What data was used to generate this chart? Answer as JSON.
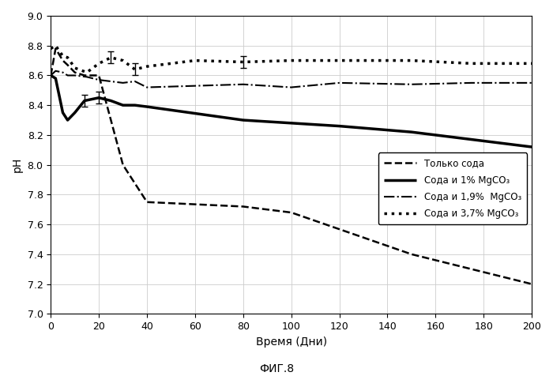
{
  "title": "ФИГ.8",
  "xlabel": "Время (Дни)",
  "ylabel": "pH",
  "ylim": [
    7.0,
    9.0
  ],
  "xlim": [
    0,
    200
  ],
  "xticks": [
    0,
    20,
    40,
    60,
    80,
    100,
    120,
    140,
    160,
    180,
    200
  ],
  "yticks": [
    7.0,
    7.2,
    7.4,
    7.6,
    7.8,
    8.0,
    8.2,
    8.4,
    8.6,
    8.8,
    9.0
  ],
  "series": [
    {
      "label": "Только сода",
      "linestyle": "--",
      "linewidth": 1.8,
      "color": "#000000",
      "x": [
        0,
        2,
        5,
        7,
        10,
        14,
        20,
        30,
        40,
        80,
        100,
        150,
        175,
        200
      ],
      "y": [
        8.6,
        8.78,
        8.7,
        8.67,
        8.62,
        8.6,
        8.6,
        8.0,
        7.75,
        7.72,
        7.68,
        7.4,
        7.3,
        7.2
      ]
    },
    {
      "label": "Сода и 1% MgCO₃",
      "linestyle": "-",
      "linewidth": 2.5,
      "color": "#000000",
      "x": [
        0,
        2,
        5,
        7,
        10,
        14,
        20,
        25,
        30,
        35,
        40,
        80,
        120,
        150,
        175,
        200
      ],
      "y": [
        8.6,
        8.58,
        8.35,
        8.3,
        8.35,
        8.43,
        8.45,
        8.43,
        8.4,
        8.4,
        8.39,
        8.3,
        8.26,
        8.22,
        8.17,
        8.12
      ]
    },
    {
      "label": "Сода и 1,9%  MgCO₃",
      "linestyle": "-.",
      "linewidth": 1.5,
      "color": "#000000",
      "x": [
        0,
        2,
        5,
        7,
        10,
        15,
        20,
        25,
        30,
        35,
        40,
        60,
        80,
        100,
        120,
        150,
        175,
        200
      ],
      "y": [
        8.6,
        8.63,
        8.62,
        8.6,
        8.6,
        8.59,
        8.57,
        8.56,
        8.55,
        8.56,
        8.52,
        8.53,
        8.54,
        8.52,
        8.55,
        8.54,
        8.55,
        8.55
      ]
    },
    {
      "label": "Сода и 3,7% MgCO₃",
      "linestyle": ":",
      "linewidth": 2.5,
      "color": "#000000",
      "x": [
        0,
        2,
        5,
        7,
        10,
        15,
        20,
        25,
        30,
        35,
        40,
        60,
        80,
        100,
        120,
        150,
        175,
        200
      ],
      "y": [
        8.78,
        8.8,
        8.73,
        8.72,
        8.65,
        8.62,
        8.68,
        8.72,
        8.7,
        8.64,
        8.66,
        8.7,
        8.69,
        8.7,
        8.7,
        8.7,
        8.68,
        8.68
      ]
    }
  ],
  "error_bars": [
    {
      "series_idx": 1,
      "x": [
        14,
        20
      ],
      "y": [
        8.43,
        8.45
      ],
      "yerr": [
        0.04,
        0.04
      ]
    },
    {
      "series_idx": 3,
      "x": [
        25,
        35,
        80
      ],
      "y": [
        8.72,
        8.64,
        8.69
      ],
      "yerr": [
        0.04,
        0.04,
        0.04
      ]
    }
  ],
  "background_color": "#ffffff",
  "grid_color": "#cccccc"
}
